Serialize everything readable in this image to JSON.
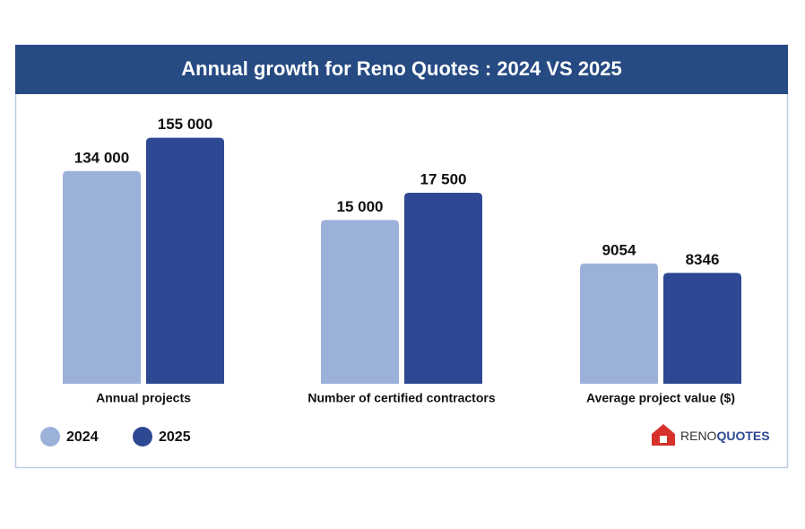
{
  "title": "Annual growth for Reno Quotes : 2024 VS 2025",
  "logo": {
    "first": "RENO",
    "second": "QUOTES"
  },
  "chart_data": [
    {
      "type": "bar",
      "xlabel": "Annual projects",
      "ylim": [
        0,
        174000
      ],
      "series": [
        {
          "name": "2024",
          "color": "#9cb1d9",
          "values": [
            134000
          ],
          "value_labels": [
            "134 000"
          ]
        },
        {
          "name": "2025",
          "color": "#2f4893",
          "values": [
            155000
          ],
          "value_labels": [
            "155 000"
          ]
        }
      ]
    },
    {
      "type": "bar",
      "xlabel": "Number of certified contractors",
      "ylim": [
        0,
        25300
      ],
      "series": [
        {
          "name": "2024",
          "color": "#9cb1d9",
          "values": [
            15000
          ],
          "value_labels": [
            "15 000"
          ]
        },
        {
          "name": "2025",
          "color": "#2f4893",
          "values": [
            17500
          ],
          "value_labels": [
            "17 500"
          ]
        }
      ]
    },
    {
      "type": "bar",
      "xlabel": "Average project value ($)",
      "ylim": [
        0,
        20800
      ],
      "series": [
        {
          "name": "2024",
          "color": "#9cb1d9",
          "values": [
            9054
          ]
        },
        {
          "name": "2025",
          "color": "#2f4893",
          "values": [
            8346
          ]
        }
      ]
    }
  ]
}
